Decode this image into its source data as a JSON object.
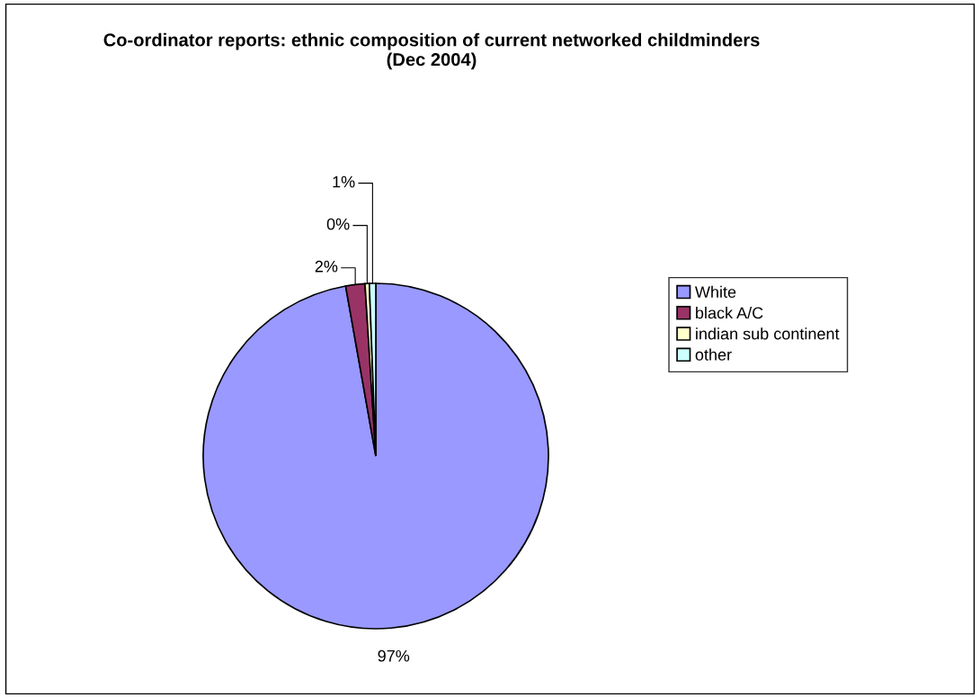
{
  "chart_data": {
    "type": "pie",
    "title": "Co-ordinator reports: ethnic composition of current networked childminders (Dec 2004)",
    "categories": [
      "White",
      "black A/C",
      "indian sub continent",
      "other"
    ],
    "values": [
      97.2,
      1.8,
      0.4,
      0.6
    ],
    "value_labels": [
      "97%",
      "2%",
      "0%",
      "1%"
    ],
    "colors": [
      "#9999ff",
      "#993366",
      "#ffffcc",
      "#ccffff"
    ],
    "legend": "right"
  }
}
